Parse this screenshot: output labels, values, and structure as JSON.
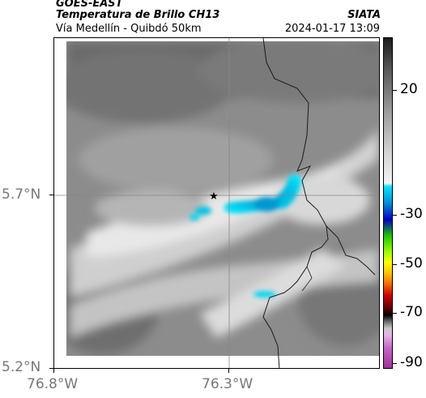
{
  "header": {
    "satellite": "GOES-EAST",
    "product": "Temperatura de Brillo CH13",
    "region": "Vía Medellín - Quibdó 50km",
    "organization": "SIATA",
    "timestamp": "2024-01-17 13:09"
  },
  "axes": {
    "y_labels": [
      "5.7°N",
      "5.2°N"
    ],
    "x_labels": [
      "76.8°W",
      "76.3°W"
    ]
  },
  "colorbar": {
    "labels": [
      "20",
      "-30",
      "-50",
      "-70",
      "-90"
    ],
    "colors": {
      "warm_top": "#1c1c1c",
      "cloud_white": "#f2f2f2",
      "cyan": "#00e5ff",
      "blue": "#0000c8",
      "green": "#1ec800",
      "yellow": "#ffff00",
      "orange": "#ff7800",
      "red": "#d20000",
      "black": "#000000",
      "magenta": "#a0329a"
    }
  },
  "map": {
    "marker": "star-icon",
    "background_palette": [
      "#5a5a5a",
      "#8a8a8a",
      "#bdbdbd",
      "#e6e6e6"
    ],
    "cold_cloud_color": "#00c8e8"
  }
}
